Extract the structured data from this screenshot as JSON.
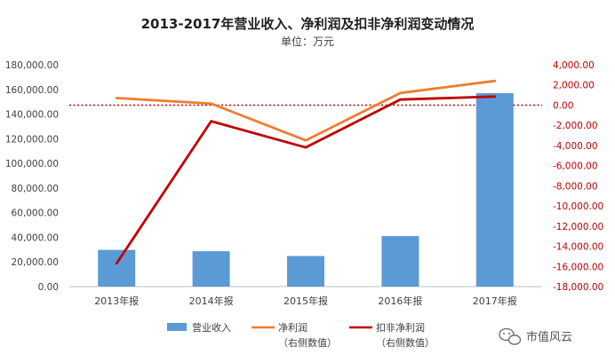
{
  "chart_data": {
    "type": "bar",
    "title": "2013-2017年营业收入、净利润及扣非净利润变动情况",
    "subtitle": "单位：万元",
    "categories": [
      "2013年报",
      "2014年报",
      "2015年报",
      "2016年报",
      "2017年报"
    ],
    "series": [
      {
        "name": "营业收入",
        "type": "bar",
        "axis": "left",
        "color": "#5b9bd5",
        "values": [
          29800,
          28700,
          24800,
          41000,
          157000
        ]
      },
      {
        "name": "净利润",
        "type": "line",
        "axis": "right",
        "color": "#ed7d31",
        "values": [
          700,
          150,
          -3500,
          1200,
          2400
        ]
      },
      {
        "name": "扣非净利润",
        "type": "line",
        "axis": "right",
        "color": "#c00000",
        "values": [
          -15700,
          -1600,
          -4200,
          550,
          850
        ]
      }
    ],
    "left_axis": {
      "ylim": [
        0,
        180000
      ],
      "ticks": [
        "0.00",
        "20,000.00",
        "40,000.00",
        "60,000.00",
        "80,000.00",
        "100,000.00",
        "120,000.00",
        "140,000.00",
        "160,000.00",
        "180,000.00"
      ]
    },
    "right_axis": {
      "ylim": [
        -18000,
        4000
      ],
      "ticks": [
        "4,000.00",
        "2,000.00",
        "0.00",
        "-2,000.00",
        "-4,000.00",
        "-6,000.00",
        "-8,000.00",
        "-10,000.00",
        "-12,000.00",
        "-14,000.00",
        "-16,000.00",
        "-18,000.00"
      ],
      "color": "#c00000"
    },
    "zero_line": {
      "axis": "right",
      "value": 0,
      "style": "dotted",
      "color": "#c00000"
    },
    "legend": {
      "placement": "bottom",
      "items": [
        {
          "label": "营业收入",
          "sub": "",
          "color": "#5b9bd5",
          "shape": "bar"
        },
        {
          "label": "净利润",
          "sub": "（右侧数值）",
          "color": "#ed7d31",
          "shape": "line"
        },
        {
          "label": "扣非净利润",
          "sub": "（右侧数值）",
          "color": "#c00000",
          "shape": "line"
        }
      ]
    },
    "grid": false
  },
  "watermark": {
    "text": "市值风云",
    "icon": "wechat-icon"
  }
}
